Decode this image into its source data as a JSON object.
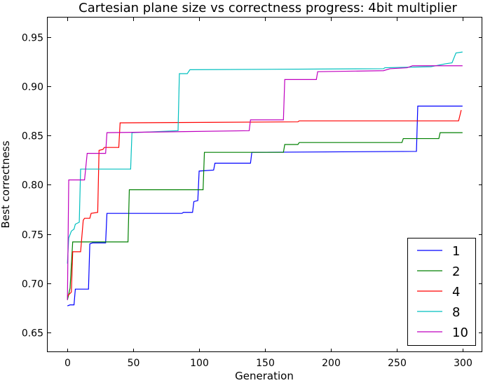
{
  "chart_data": {
    "type": "line",
    "title": "Cartesian plane size vs correctness progress: 4bit multiplier",
    "xlabel": "Generation",
    "ylabel": "Best correctness",
    "xlim": [
      -15,
      315
    ],
    "ylim": [
      0.63,
      0.97
    ],
    "xticks": [
      0,
      50,
      100,
      150,
      200,
      250,
      300
    ],
    "yticks": [
      0.65,
      0.7,
      0.75,
      0.8,
      0.85,
      0.9,
      0.95
    ],
    "xtick_labels": [
      "0",
      "50",
      "100",
      "150",
      "200",
      "250",
      "300"
    ],
    "ytick_labels": [
      "0.65",
      "0.70",
      "0.75",
      "0.80",
      "0.85",
      "0.90",
      "0.95"
    ],
    "grid": false,
    "legend_position": "bottom-right",
    "series": [
      {
        "name": "1",
        "color": "#0000ff",
        "points": [
          [
            0,
            0.677
          ],
          [
            2,
            0.678
          ],
          [
            5,
            0.678
          ],
          [
            6,
            0.694
          ],
          [
            16,
            0.694
          ],
          [
            17,
            0.74
          ],
          [
            19,
            0.741
          ],
          [
            29,
            0.741
          ],
          [
            30,
            0.771
          ],
          [
            87,
            0.771
          ],
          [
            88,
            0.772
          ],
          [
            95,
            0.772
          ],
          [
            96,
            0.783
          ],
          [
            99,
            0.784
          ],
          [
            100,
            0.814
          ],
          [
            111,
            0.815
          ],
          [
            112,
            0.822
          ],
          [
            139,
            0.822
          ],
          [
            140,
            0.833
          ],
          [
            265,
            0.834
          ],
          [
            266,
            0.88
          ],
          [
            300,
            0.88
          ]
        ]
      },
      {
        "name": "2",
        "color": "#008000",
        "points": [
          [
            0,
            0.683
          ],
          [
            2,
            0.695
          ],
          [
            4,
            0.742
          ],
          [
            46,
            0.742
          ],
          [
            47,
            0.795
          ],
          [
            103,
            0.795
          ],
          [
            104,
            0.833
          ],
          [
            164,
            0.833
          ],
          [
            165,
            0.841
          ],
          [
            175,
            0.841
          ],
          [
            176,
            0.843
          ],
          [
            254,
            0.843
          ],
          [
            255,
            0.847
          ],
          [
            282,
            0.847
          ],
          [
            283,
            0.853
          ],
          [
            300,
            0.853
          ]
        ]
      },
      {
        "name": "4",
        "color": "#ff0000",
        "points": [
          [
            0,
            0.687
          ],
          [
            3,
            0.691
          ],
          [
            4,
            0.732
          ],
          [
            10,
            0.732
          ],
          [
            12,
            0.764
          ],
          [
            13,
            0.766
          ],
          [
            17,
            0.766
          ],
          [
            18,
            0.771
          ],
          [
            23,
            0.772
          ],
          [
            24,
            0.835
          ],
          [
            27,
            0.836
          ],
          [
            28,
            0.838
          ],
          [
            39,
            0.838
          ],
          [
            40,
            0.863
          ],
          [
            175,
            0.864
          ],
          [
            176,
            0.865
          ],
          [
            297,
            0.865
          ],
          [
            299,
            0.876
          ]
        ]
      },
      {
        "name": "8",
        "color": "#00bfbf",
        "points": [
          [
            0,
            0.72
          ],
          [
            1,
            0.746
          ],
          [
            3,
            0.753
          ],
          [
            5,
            0.755
          ],
          [
            6,
            0.76
          ],
          [
            9,
            0.762
          ],
          [
            10,
            0.816
          ],
          [
            48,
            0.816
          ],
          [
            49,
            0.853
          ],
          [
            84,
            0.855
          ],
          [
            85,
            0.913
          ],
          [
            91,
            0.913
          ],
          [
            93,
            0.917
          ],
          [
            240,
            0.918
          ],
          [
            241,
            0.919
          ],
          [
            276,
            0.92
          ],
          [
            287,
            0.923
          ],
          [
            292,
            0.924
          ],
          [
            295,
            0.934
          ],
          [
            300,
            0.935
          ]
        ]
      },
      {
        "name": "10",
        "color": "#bf00bf",
        "points": [
          [
            0,
            0.683
          ],
          [
            1,
            0.805
          ],
          [
            13,
            0.805
          ],
          [
            15,
            0.832
          ],
          [
            29,
            0.832
          ],
          [
            30,
            0.853
          ],
          [
            138,
            0.855
          ],
          [
            139,
            0.866
          ],
          [
            164,
            0.866
          ],
          [
            165,
            0.907
          ],
          [
            189,
            0.907
          ],
          [
            190,
            0.915
          ],
          [
            240,
            0.916
          ],
          [
            245,
            0.918
          ],
          [
            258,
            0.919
          ],
          [
            262,
            0.921
          ],
          [
            300,
            0.921
          ]
        ]
      }
    ]
  }
}
